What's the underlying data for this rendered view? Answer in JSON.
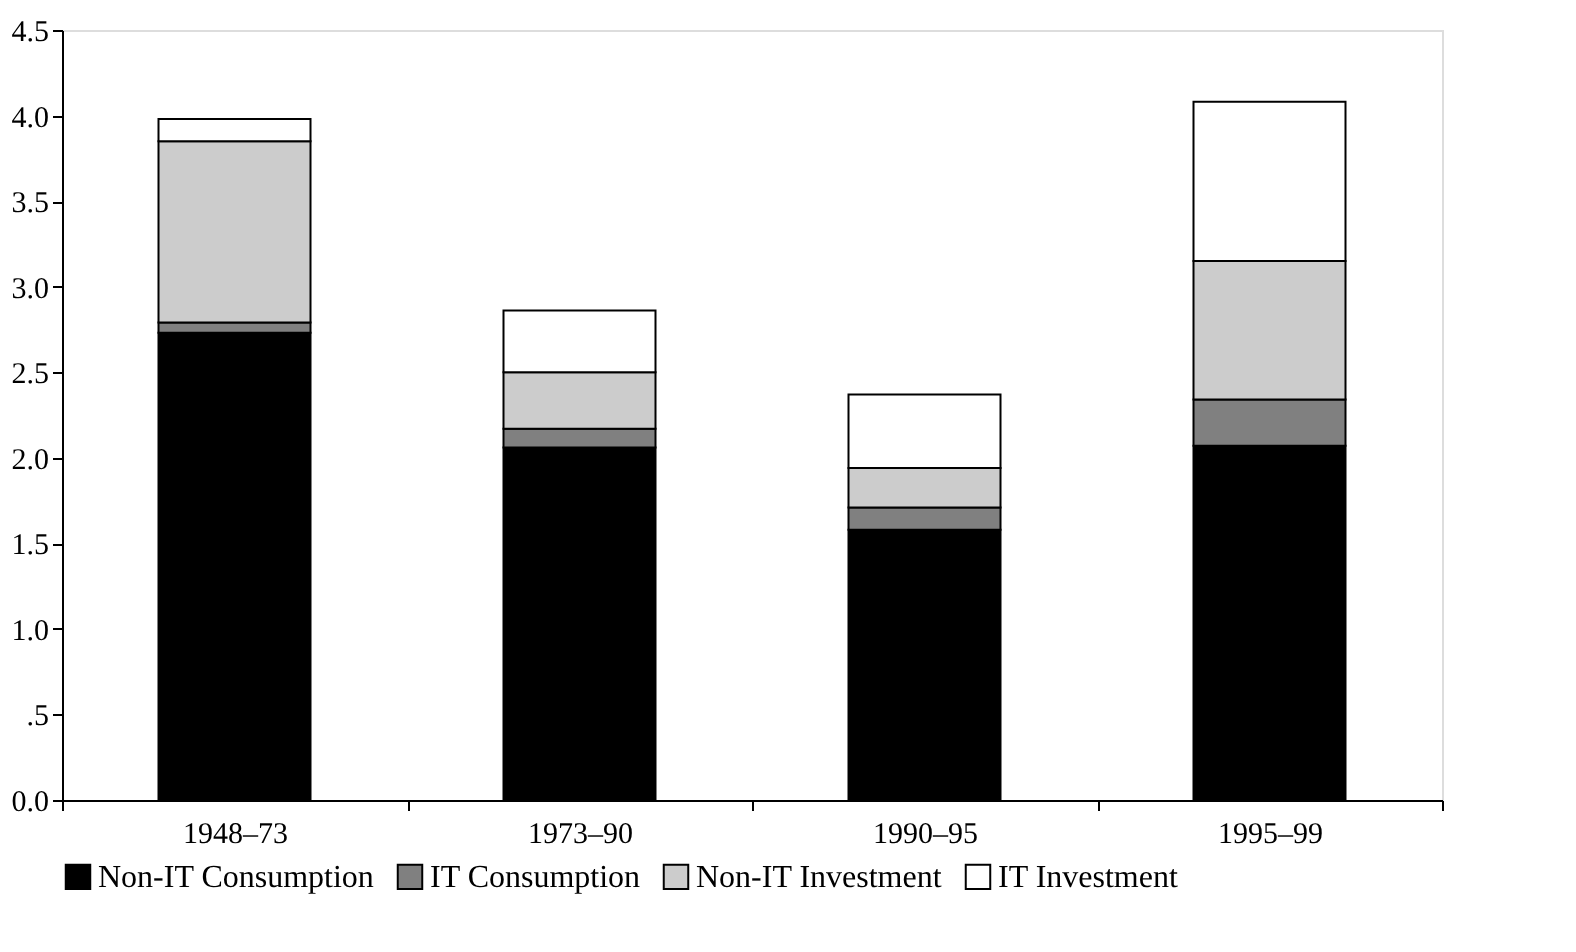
{
  "chart_data": {
    "type": "bar",
    "stacked": true,
    "categories": [
      "1948–73",
      "1973–90",
      "1990–95",
      "1995–99"
    ],
    "series": [
      {
        "name": "Non-IT Consumption",
        "color": "#000000",
        "values": [
          2.73,
          2.06,
          1.58,
          2.07
        ]
      },
      {
        "name": "IT Consumption",
        "color": "#808080",
        "values": [
          0.06,
          0.11,
          0.13,
          0.27
        ]
      },
      {
        "name": "Non-IT Investment",
        "color": "#cccccc",
        "values": [
          1.06,
          0.33,
          0.23,
          0.81
        ]
      },
      {
        "name": "IT Investment",
        "color": "#ffffff",
        "values": [
          0.13,
          0.36,
          0.43,
          0.93
        ]
      }
    ],
    "ylim": [
      0,
      4.5
    ],
    "yticks": [
      {
        "value": 0,
        "label": "0.0"
      },
      {
        "value": 0.5,
        "label": ".5"
      },
      {
        "value": 1,
        "label": "1.0"
      },
      {
        "value": 1.5,
        "label": "1.5"
      },
      {
        "value": 2,
        "label": "2.0"
      },
      {
        "value": 2.5,
        "label": "2.5"
      },
      {
        "value": 3,
        "label": "3.0"
      },
      {
        "value": 3.5,
        "label": "3.5"
      },
      {
        "value": 4,
        "label": "4.0"
      },
      {
        "value": 4.5,
        "label": "4.5"
      }
    ],
    "grid": false,
    "legend": "bottom"
  }
}
